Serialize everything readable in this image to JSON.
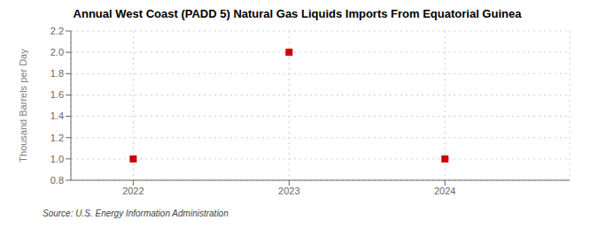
{
  "chart_data": {
    "type": "scatter",
    "title": "Annual West Coast (PADD 5) Natural Gas Liquids Imports From Equatorial Guinea",
    "ylabel": "Thousand Barrels per Day",
    "annotation": "Source: U.S. Energy Information Administration",
    "x": [
      2022,
      2023,
      2024
    ],
    "values": [
      1.0,
      2.0,
      1.0
    ],
    "xlim": [
      2021.6,
      2024.8
    ],
    "xticks": [
      2022,
      2023,
      2024
    ],
    "ylim": [
      0.8,
      2.2
    ],
    "yticks": [
      0.8,
      {
        "value": 1.0,
        "label": "1.0"
      },
      1.2,
      1.4,
      1.6,
      1.8,
      {
        "value": 2.0,
        "label": "2.0"
      },
      2.2
    ],
    "color": "#cc0000",
    "marker": "square",
    "grid": true
  }
}
